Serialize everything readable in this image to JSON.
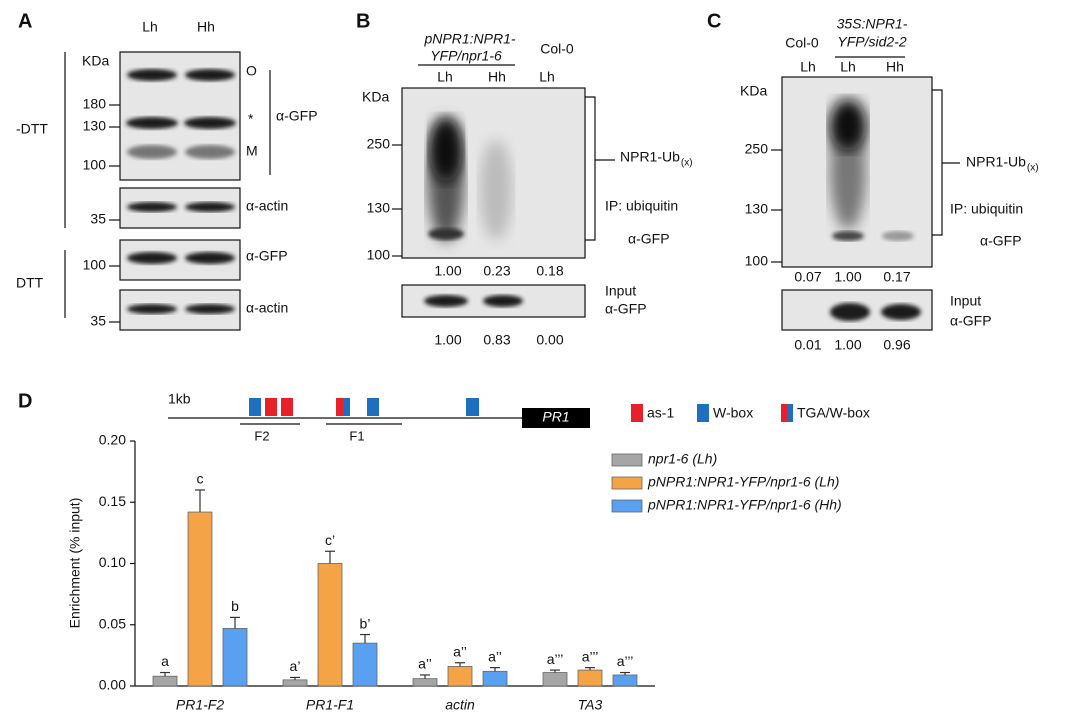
{
  "panel_a": {
    "label": "A",
    "lanes": [
      "Lh",
      "Hh"
    ],
    "kda": "KDa",
    "conditions": [
      "-DTT",
      "DTT"
    ],
    "markers": [
      "180",
      "130",
      "100",
      "35",
      "100",
      "35"
    ],
    "band_labels": [
      "O",
      "*",
      "M"
    ],
    "antibodies": [
      "α-GFP",
      "α-actin",
      "α-GFP",
      "α-actin"
    ]
  },
  "panel_b": {
    "label": "B",
    "construct": [
      "pNPR1:NPR1-",
      "YFP/npr1-6"
    ],
    "control": "Col-0",
    "lanes": [
      "Lh",
      "Hh",
      "Lh"
    ],
    "kda": "KDa",
    "markers": [
      "250",
      "130",
      "100"
    ],
    "conjugate": "NPR1-Ub",
    "conjugate_sub": "(x)",
    "ip": "IP: ubiquitin",
    "ip_antibody": "α-GFP",
    "ip_quant": [
      "1.00",
      "0.23",
      "0.18"
    ],
    "input": "Input",
    "input_antibody": "α-GFP",
    "input_quant": [
      "1.00",
      "0.83",
      "0.00"
    ]
  },
  "panel_c": {
    "label": "C",
    "construct": [
      "35S:NPR1-",
      "YFP/sid2-2"
    ],
    "control": "Col-0",
    "lanes": [
      "Lh",
      "Lh",
      "Hh"
    ],
    "kda": "KDa",
    "markers": [
      "250",
      "130",
      "100"
    ],
    "conjugate": "NPR1-Ub",
    "conjugate_sub": "(x)",
    "ip": "IP: ubiquitin",
    "ip_antibody": "α-GFP",
    "ip_quant": [
      "0.07",
      "1.00",
      "0.17"
    ],
    "input": "Input",
    "input_antibody": "α-GFP",
    "input_quant": [
      "0.01",
      "1.00",
      "0.96"
    ]
  },
  "panel_d": {
    "label": "D",
    "diagram": {
      "scale": "1kb",
      "gene": "PR1",
      "fragments": [
        "F2",
        "F1"
      ],
      "legend": [
        "as-1",
        "W-box",
        "TGA/W-box"
      ]
    },
    "chart_data": {
      "type": "bar",
      "y_label": "Enrichment (% input)",
      "categories": [
        "PR1-F2",
        "PR1-F1",
        "actin",
        "TA3"
      ],
      "series": [
        {
          "name": "npr1-6 (Lh)",
          "color": "#a6a6a6",
          "values": [
            0.008,
            0.005,
            0.006,
            0.011
          ],
          "errors": [
            0.003,
            0.002,
            0.003,
            0.002
          ],
          "letters": [
            "a",
            "a’",
            "a’’",
            "a’’’"
          ]
        },
        {
          "name": "pNPR1:NPR1-YFP/npr1-6 (Lh)",
          "color": "#f5a347",
          "values": [
            0.142,
            0.1,
            0.016,
            0.013
          ],
          "errors": [
            0.018,
            0.01,
            0.003,
            0.002
          ],
          "letters": [
            "c",
            "c’",
            "a’’",
            "a’’’"
          ]
        },
        {
          "name": "pNPR1:NPR1-YFP/npr1-6 (Hh)",
          "color": "#5aa0f0",
          "values": [
            0.047,
            0.035,
            0.012,
            0.009
          ],
          "errors": [
            0.009,
            0.007,
            0.003,
            0.002
          ],
          "letters": [
            "b",
            "b’",
            "a’’",
            "a’’’"
          ]
        }
      ],
      "ylim": [
        0,
        0.2
      ],
      "yticks": [
        {
          "value": 0,
          "label": "0.00"
        },
        {
          "value": 0.05,
          "label": "0.05"
        },
        {
          "value": 0.1,
          "label": "0.10"
        },
        {
          "value": 0.15,
          "label": "0.15"
        },
        {
          "value": 0.2,
          "label": "0.20"
        }
      ],
      "grid": false,
      "legend": "upper right"
    }
  }
}
